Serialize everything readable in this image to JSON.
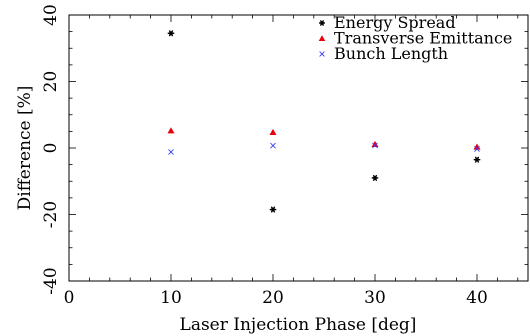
{
  "chart_data": {
    "type": "scatter",
    "xlabel": "Laser Injection Phase [deg]",
    "ylabel": "Difference [%]",
    "xlim": [
      0,
      45
    ],
    "ylim": [
      -40,
      40
    ],
    "xticks": [
      0,
      10,
      20,
      30,
      40
    ],
    "yticks": [
      -40,
      -20,
      0,
      20,
      40
    ],
    "xtick_labels": [
      "0",
      "10",
      "20",
      "30",
      "40"
    ],
    "ytick_labels": [
      "-40",
      "-20",
      "0",
      "20",
      "40"
    ],
    "grid": false,
    "legend_position": "top-right",
    "series": [
      {
        "name": "Energy Spread",
        "marker": "star",
        "color": "#000000",
        "x": [
          10,
          20,
          30,
          40
        ],
        "y": [
          34.5,
          -18.5,
          -9.0,
          -3.5
        ]
      },
      {
        "name": "Transverse Emittance",
        "marker": "triangle",
        "color": "#e8000b",
        "x": [
          10,
          20,
          30,
          40
        ],
        "y": [
          5.2,
          4.7,
          1.1,
          0.3
        ]
      },
      {
        "name": "Bunch Length",
        "marker": "x",
        "color": "#3a3af0",
        "x": [
          10,
          20,
          30,
          40
        ],
        "y": [
          -1.2,
          0.7,
          0.8,
          -0.3
        ]
      }
    ]
  }
}
